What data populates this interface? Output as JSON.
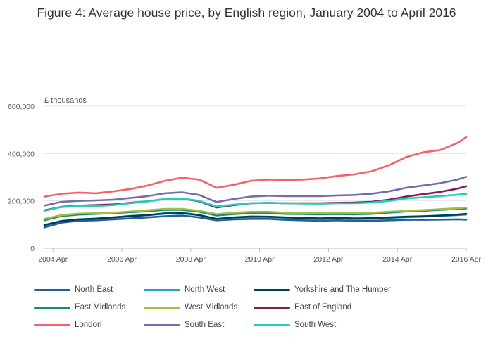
{
  "title": "Figure 4: Average house price, by English region, January 2004 to April 2016",
  "chart_data": {
    "type": "line",
    "title": "Figure 4: Average house price, by English region, January 2004 to April 2016",
    "ylabel": "£ thousands",
    "xlabel": "",
    "ylim": [
      0,
      600000
    ],
    "xlim": [
      "2004-01",
      "2016-04"
    ],
    "yticks": [
      0,
      200000,
      400000,
      600000
    ],
    "ytick_labels": [
      "0",
      "200,000",
      "400,000",
      "600,000"
    ],
    "xticks": [
      "2004-04",
      "2006-04",
      "2008-04",
      "2010-04",
      "2012-04",
      "2014-04",
      "2016-04"
    ],
    "xtick_labels": [
      "2004 Apr",
      "2006 Apr",
      "2008 Apr",
      "2010 Apr",
      "2012 Apr",
      "2014 Apr",
      "2016 Apr"
    ],
    "grid": true,
    "legend_position": "bottom",
    "x": [
      "2004-01",
      "2004-07",
      "2005-01",
      "2005-07",
      "2006-01",
      "2006-07",
      "2007-01",
      "2007-07",
      "2008-01",
      "2008-07",
      "2009-01",
      "2009-07",
      "2010-01",
      "2010-07",
      "2011-01",
      "2011-07",
      "2012-01",
      "2012-07",
      "2013-01",
      "2013-07",
      "2014-01",
      "2014-07",
      "2015-01",
      "2015-07",
      "2016-01",
      "2016-04"
    ],
    "series": [
      {
        "name": "North East",
        "color": "#206095",
        "values": [
          88000,
          108000,
          116000,
          118000,
          122000,
          126000,
          130000,
          135000,
          138000,
          130000,
          118000,
          122000,
          124000,
          124000,
          120000,
          118000,
          116000,
          118000,
          116000,
          116000,
          118000,
          120000,
          120000,
          121000,
          122000,
          121000
        ]
      },
      {
        "name": "North West",
        "color": "#27a0cc",
        "values": [
          96000,
          114000,
          122000,
          125000,
          130000,
          135000,
          140000,
          148000,
          150000,
          140000,
          122000,
          128000,
          132000,
          132000,
          128000,
          126000,
          124000,
          126000,
          124000,
          125000,
          128000,
          131000,
          133000,
          136000,
          140000,
          142000
        ]
      },
      {
        "name": "Yorkshire and The Humber",
        "color": "#003c57",
        "values": [
          98000,
          115000,
          122000,
          125000,
          130000,
          136000,
          140000,
          146000,
          148000,
          140000,
          124000,
          130000,
          134000,
          133000,
          130000,
          128000,
          126000,
          128000,
          126000,
          127000,
          130000,
          133000,
          135000,
          138000,
          142000,
          145000
        ]
      },
      {
        "name": "East Midlands",
        "color": "#118c7b",
        "values": [
          118000,
          136000,
          142000,
          145000,
          148000,
          152000,
          156000,
          162000,
          162000,
          154000,
          138000,
          144000,
          148000,
          148000,
          145000,
          144000,
          143000,
          144000,
          143000,
          145000,
          150000,
          155000,
          158000,
          162000,
          166000,
          168000
        ]
      },
      {
        "name": "West Midlands",
        "color": "#a8bd3a",
        "values": [
          124000,
          140000,
          146000,
          148000,
          150000,
          155000,
          160000,
          166000,
          166000,
          158000,
          144000,
          150000,
          154000,
          154000,
          150000,
          149000,
          148000,
          150000,
          149000,
          150000,
          154000,
          158000,
          161000,
          165000,
          169000,
          172000
        ]
      },
      {
        "name": "East of England",
        "color": "#871a5b",
        "values": [
          160000,
          175000,
          180000,
          182000,
          185000,
          192000,
          198000,
          208000,
          210000,
          198000,
          172000,
          182000,
          190000,
          192000,
          190000,
          190000,
          190000,
          192000,
          193000,
          196000,
          205000,
          218000,
          228000,
          238000,
          252000,
          262000
        ]
      },
      {
        "name": "London",
        "color": "#f66068",
        "values": [
          218000,
          230000,
          235000,
          232000,
          240000,
          250000,
          265000,
          285000,
          298000,
          290000,
          255000,
          268000,
          285000,
          290000,
          288000,
          290000,
          295000,
          305000,
          312000,
          325000,
          350000,
          385000,
          405000,
          415000,
          445000,
          470000
        ]
      },
      {
        "name": "South East",
        "color": "#746cb1",
        "values": [
          180000,
          196000,
          200000,
          202000,
          205000,
          212000,
          220000,
          232000,
          236000,
          225000,
          195000,
          208000,
          218000,
          222000,
          220000,
          220000,
          220000,
          223000,
          225000,
          230000,
          240000,
          255000,
          265000,
          275000,
          290000,
          302000
        ]
      },
      {
        "name": "South West",
        "color": "#22d0b6",
        "values": [
          158000,
          174000,
          178000,
          178000,
          182000,
          190000,
          198000,
          208000,
          210000,
          200000,
          176000,
          184000,
          190000,
          192000,
          190000,
          189000,
          188000,
          190000,
          190000,
          193000,
          200000,
          210000,
          215000,
          220000,
          226000,
          230000
        ]
      }
    ]
  }
}
